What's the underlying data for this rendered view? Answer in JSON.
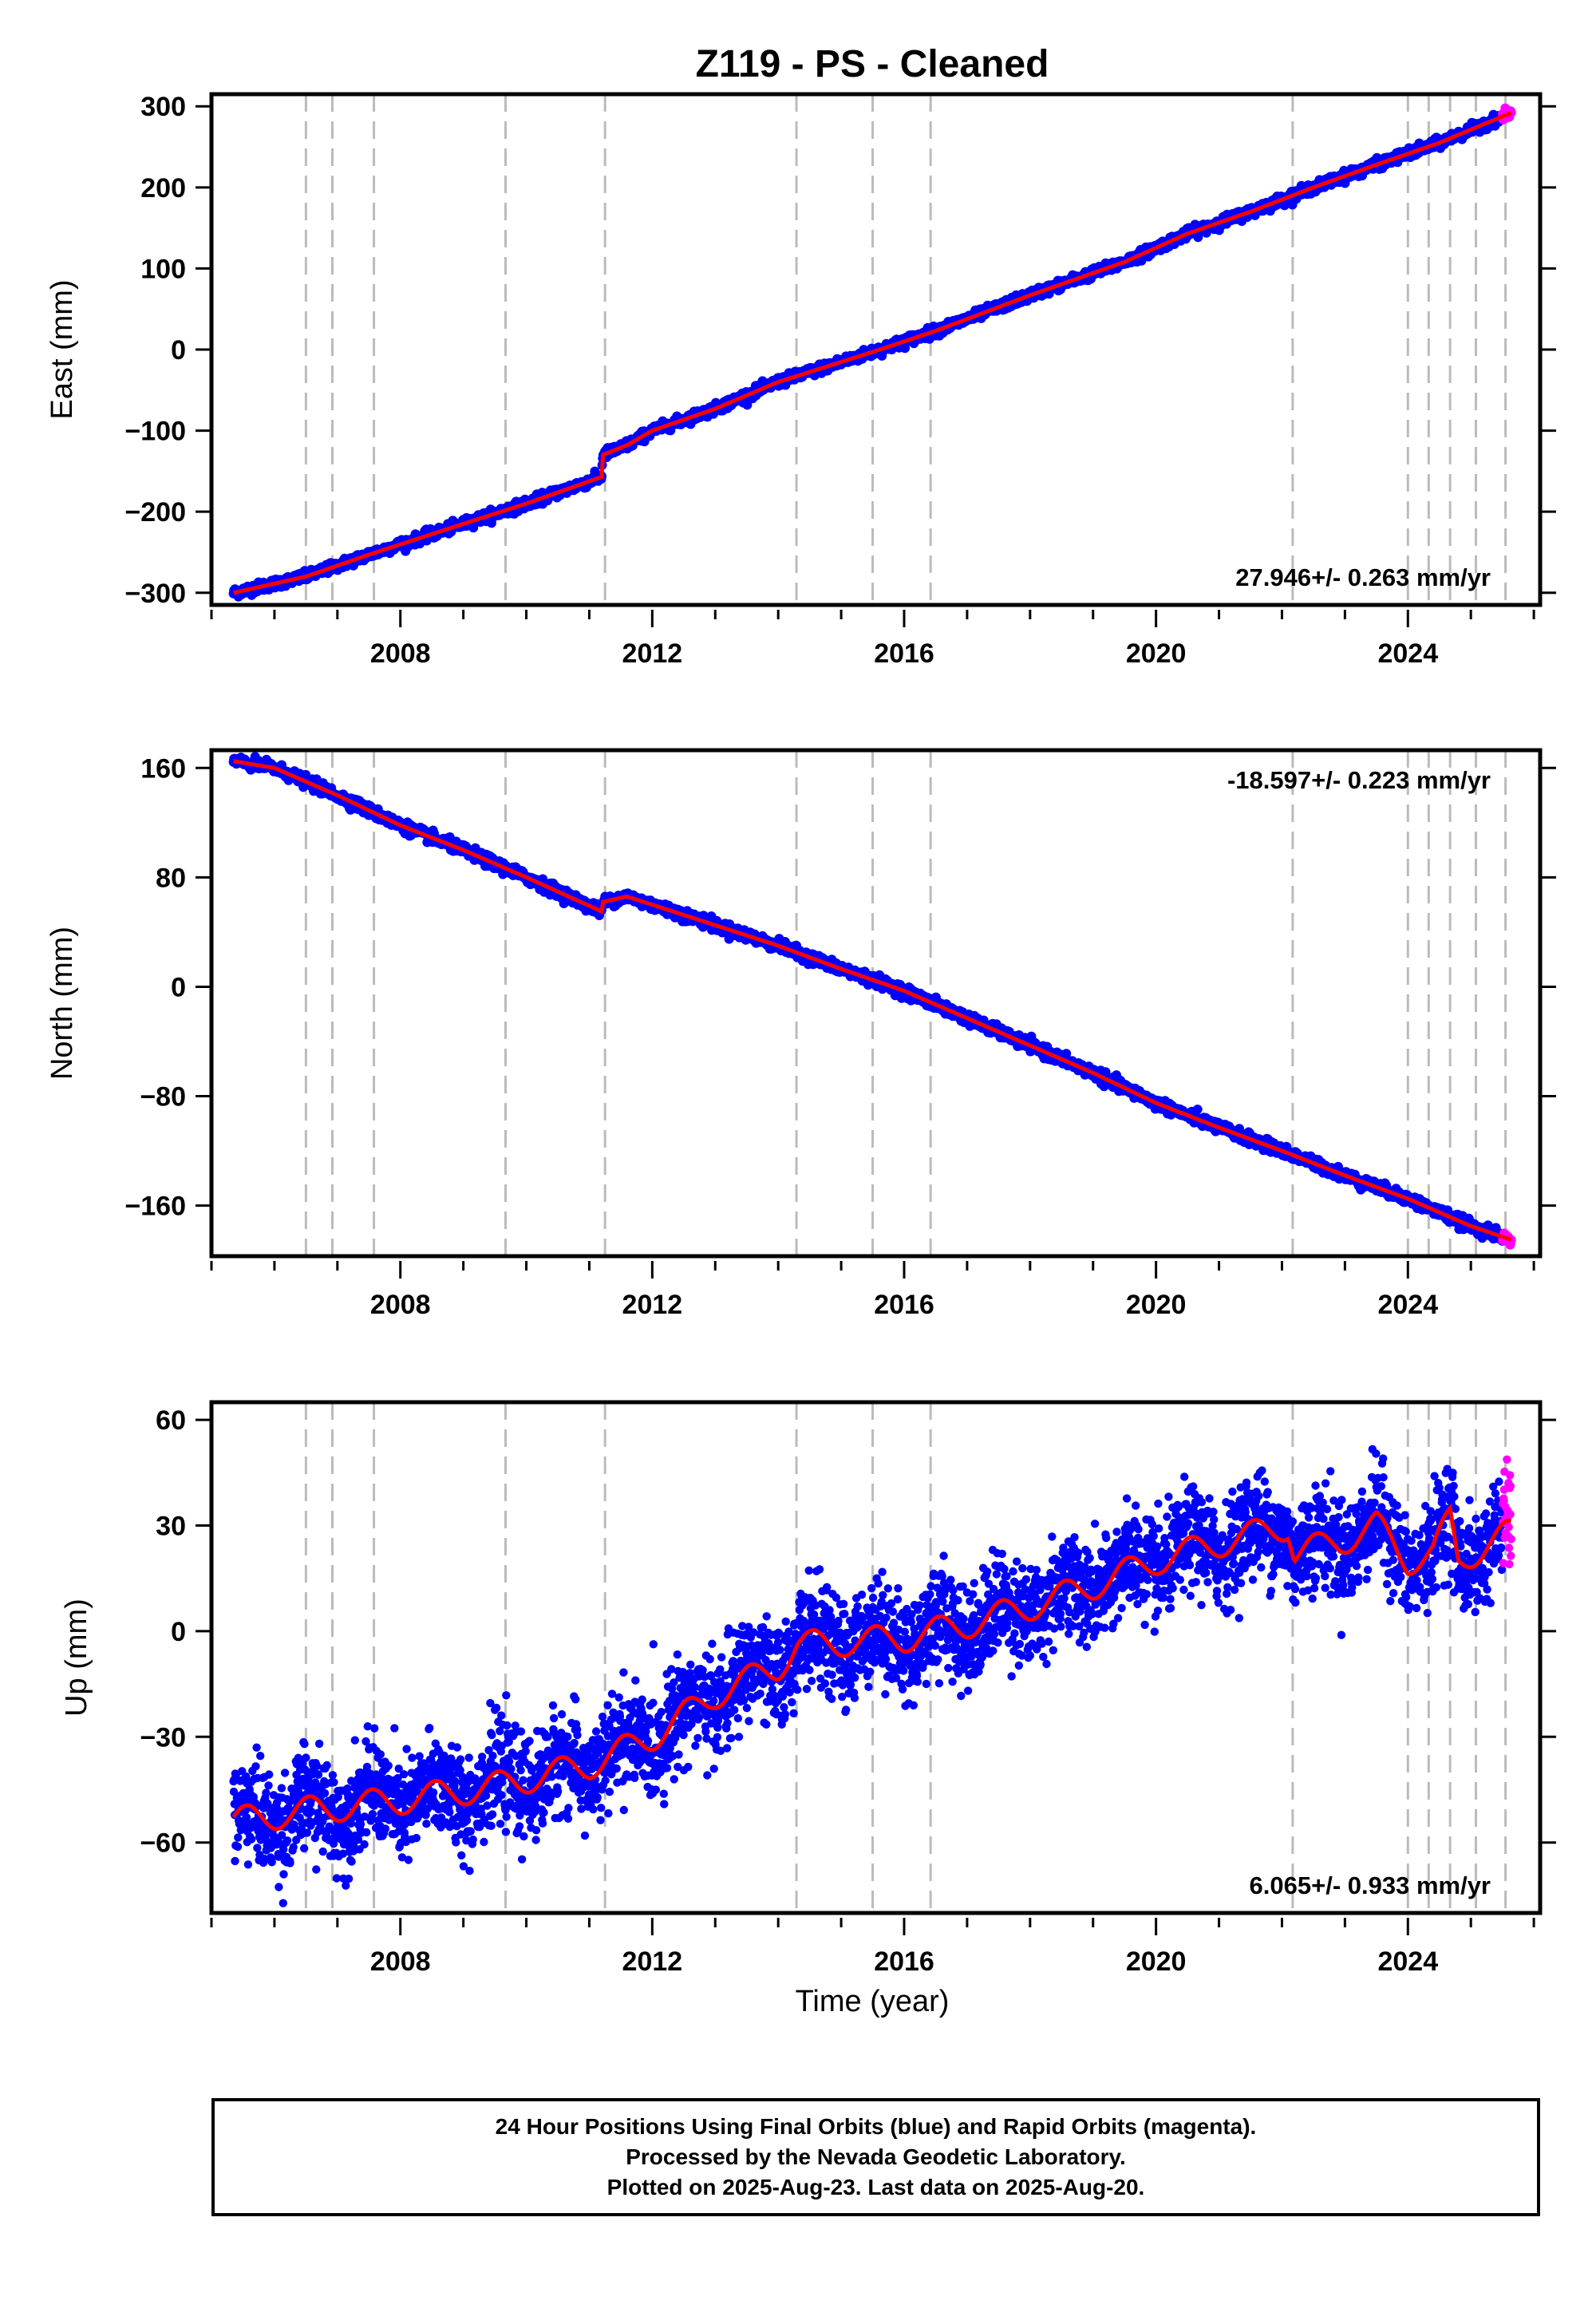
{
  "colors": {
    "final_points": "#0000ff",
    "rapid_points": "#ff00ff",
    "model_line": "#ff0000",
    "event_lines": "#bbbbbb",
    "frame": "#000000"
  },
  "footer": {
    "line1": "24 Hour Positions Using Final Orbits (blue) and Rapid Orbits (magenta).",
    "line2": "Processed by the Nevada Geodetic Laboratory.",
    "line3": "Plotted on 2025-Aug-23. Last data on 2025-Aug-20."
  },
  "chart_data": {
    "type": "scatter",
    "title": "Z119  - PS - Cleaned",
    "xlabel": "Time (year)",
    "xlim": [
      2005.0,
      2026.1
    ],
    "x_ticks": [
      2008,
      2012,
      2016,
      2020,
      2024
    ],
    "x_tick_labels": [
      "2008",
      "2012",
      "2016",
      "2020",
      "2024"
    ],
    "data_start": 2005.35,
    "last_data": 2025.64,
    "rapid_start": 2025.5,
    "event_lines": [
      2006.5,
      2006.92,
      2007.58,
      2009.67,
      2011.25,
      2014.29,
      2015.5,
      2016.42,
      2022.17,
      2024.0,
      2024.33,
      2024.67,
      2025.08,
      2025.55
    ],
    "panels": [
      {
        "name": "east",
        "ylabel": "East (mm)",
        "ylim": [
          -315,
          315
        ],
        "y_ticks": [
          -300,
          -200,
          -100,
          0,
          100,
          200,
          300
        ],
        "y_tick_labels": [
          "−300",
          "−200",
          "−100",
          "0",
          "100",
          "200",
          "300"
        ],
        "rate_label": "27.946+/- 0.263 mm/yr",
        "rate_position": "bottom-right",
        "noise_mm": 3,
        "seasonal_mm": 0,
        "model_knots": [
          [
            2005.35,
            -300
          ],
          [
            2006.5,
            -280
          ],
          [
            2007.5,
            -253
          ],
          [
            2009.0,
            -215
          ],
          [
            2010.0,
            -190
          ],
          [
            2011.2,
            -157
          ],
          [
            2011.21,
            -130
          ],
          [
            2011.6,
            -118
          ],
          [
            2012.0,
            -100
          ],
          [
            2013.0,
            -73
          ],
          [
            2014.0,
            -40
          ],
          [
            2015.5,
            -3
          ],
          [
            2016.5,
            23
          ],
          [
            2018.0,
            67
          ],
          [
            2019.5,
            108
          ],
          [
            2020.5,
            143
          ],
          [
            2021.5,
            170
          ],
          [
            2022.5,
            200
          ],
          [
            2023.5,
            228
          ],
          [
            2024.5,
            255
          ],
          [
            2025.64,
            292
          ]
        ],
        "series": [
          {
            "name": "Final Orbits",
            "color": "#0000ff"
          },
          {
            "name": "Rapid Orbits",
            "color": "#ff00ff"
          }
        ]
      },
      {
        "name": "north",
        "ylabel": "North (mm)",
        "ylim": [
          -197,
          173
        ],
        "y_ticks": [
          -160,
          -80,
          0,
          80,
          160
        ],
        "y_tick_labels": [
          "−160",
          "−80",
          "0",
          "80",
          "160"
        ],
        "rate_label": "-18.597+/- 0.223 mm/yr",
        "rate_position": "top-right",
        "noise_mm": 2,
        "seasonal_mm": 0,
        "model_knots": [
          [
            2005.35,
            165
          ],
          [
            2006.0,
            160
          ],
          [
            2007.0,
            140
          ],
          [
            2008.0,
            118
          ],
          [
            2009.0,
            100
          ],
          [
            2010.0,
            80
          ],
          [
            2011.2,
            55
          ],
          [
            2011.21,
            62
          ],
          [
            2011.6,
            66
          ],
          [
            2012.0,
            60
          ],
          [
            2013.0,
            45
          ],
          [
            2014.0,
            30
          ],
          [
            2015.0,
            13
          ],
          [
            2016.0,
            -3
          ],
          [
            2017.0,
            -23
          ],
          [
            2018.0,
            -43
          ],
          [
            2019.0,
            -63
          ],
          [
            2020.0,
            -85
          ],
          [
            2021.0,
            -103
          ],
          [
            2022.0,
            -120
          ],
          [
            2023.0,
            -138
          ],
          [
            2024.0,
            -155
          ],
          [
            2025.0,
            -175
          ],
          [
            2025.64,
            -185
          ]
        ],
        "series": [
          {
            "name": "Final Orbits",
            "color": "#0000ff"
          },
          {
            "name": "Rapid Orbits",
            "color": "#ff00ff"
          }
        ]
      },
      {
        "name": "up",
        "ylabel": "Up (mm)",
        "ylim": [
          -80,
          65
        ],
        "y_ticks": [
          -60,
          -30,
          0,
          30,
          60
        ],
        "y_tick_labels": [
          "−60",
          "−30",
          "0",
          "30",
          "60"
        ],
        "rate_label": "6.065+/- 0.933 mm/yr",
        "rate_position": "bottom-right",
        "noise_mm": 7,
        "seasonal_mm": 4,
        "model_knots": [
          [
            2005.35,
            -54
          ],
          [
            2006.5,
            -51
          ],
          [
            2008.0,
            -48
          ],
          [
            2009.5,
            -44
          ],
          [
            2011.0,
            -38
          ],
          [
            2012.0,
            -30
          ],
          [
            2012.5,
            -24
          ],
          [
            2013.0,
            -18
          ],
          [
            2014.0,
            -10
          ],
          [
            2014.3,
            -4
          ],
          [
            2016.0,
            -2
          ],
          [
            2017.0,
            2
          ],
          [
            2018.0,
            7
          ],
          [
            2019.0,
            13
          ],
          [
            2020.0,
            20
          ],
          [
            2021.0,
            25
          ],
          [
            2022.1,
            30
          ],
          [
            2022.2,
            22
          ],
          [
            2023.0,
            26
          ],
          [
            2023.5,
            30
          ],
          [
            2024.0,
            20
          ],
          [
            2024.4,
            22
          ],
          [
            2024.67,
            32
          ],
          [
            2024.8,
            20
          ],
          [
            2025.64,
            28
          ]
        ],
        "series": [
          {
            "name": "Final Orbits",
            "color": "#0000ff"
          },
          {
            "name": "Rapid Orbits",
            "color": "#ff00ff"
          }
        ]
      }
    ]
  }
}
